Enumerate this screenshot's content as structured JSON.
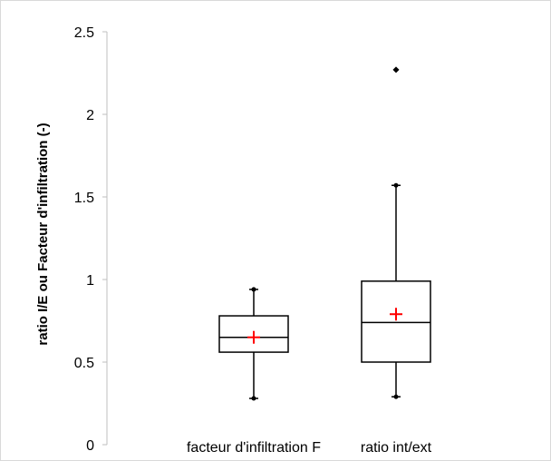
{
  "chart_data": {
    "type": "boxplot",
    "title": "",
    "xlabel": "",
    "ylabel": "ratio I/E ou Facteur d'infiltration (-)",
    "ylim": [
      0,
      2.5
    ],
    "yticks": [
      "0",
      "0.5",
      "1",
      "1.5",
      "2",
      "2.5"
    ],
    "grid": false,
    "legend": "none",
    "colors": {
      "box": "#000000",
      "mean_marker": "#ff0000",
      "outlier": "#000000"
    },
    "categories": [
      "facteur d'infiltration F",
      "ratio int/ext"
    ],
    "boxes": [
      {
        "category": "facteur d'infiltration F",
        "whisker_low": 0.28,
        "q1": 0.56,
        "median": 0.65,
        "q3": 0.78,
        "whisker_high": 0.94,
        "mean": 0.65,
        "outliers": []
      },
      {
        "category": "ratio int/ext",
        "whisker_low": 0.29,
        "q1": 0.5,
        "median": 0.74,
        "q3": 0.99,
        "whisker_high": 1.57,
        "mean": 0.79,
        "outliers": [
          2.27
        ]
      }
    ]
  }
}
